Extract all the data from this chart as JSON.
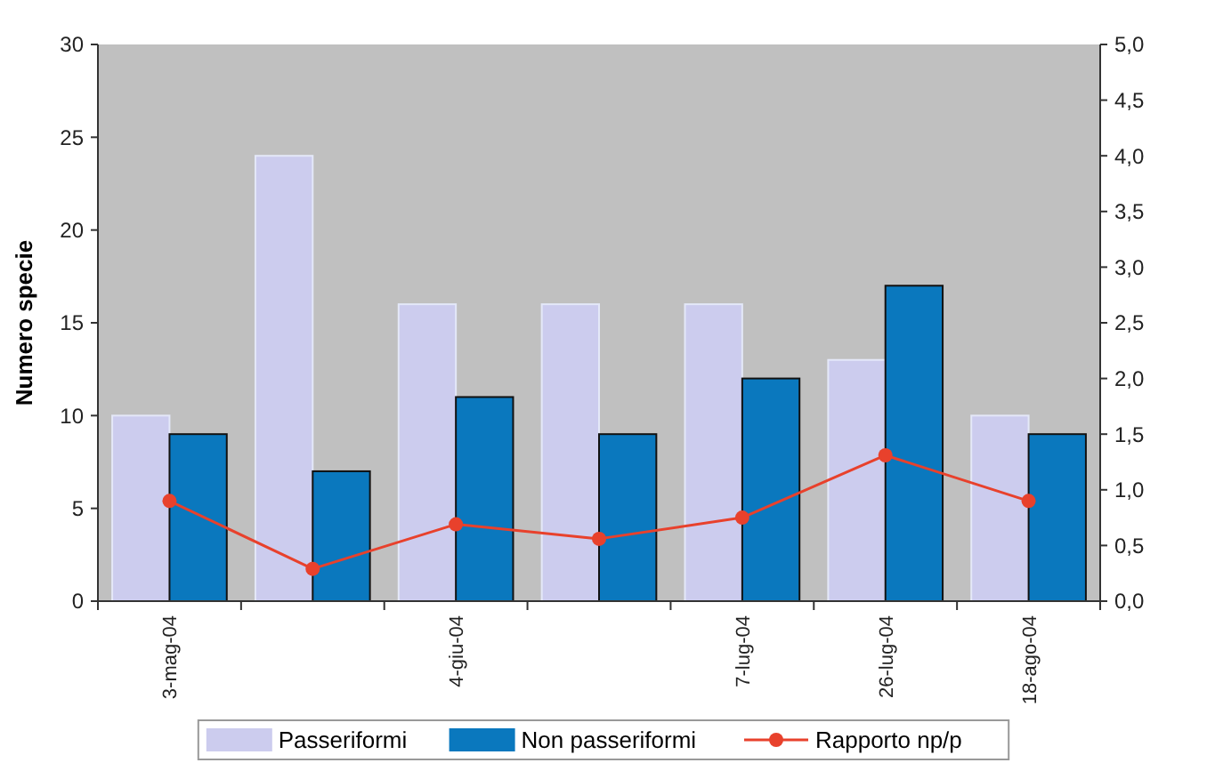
{
  "chart_data": {
    "type": "bar",
    "ylabel": "Numero specie",
    "categories": [
      "3-mag-04",
      null,
      "4-giu-04",
      null,
      "7-lug-04",
      "26-lug-04",
      "18-ago-04"
    ],
    "series": [
      {
        "name": "Passeriformi",
        "color": "#ccccee",
        "values": [
          10,
          24,
          16,
          16,
          16,
          13,
          10
        ]
      },
      {
        "name": "Non passeriformi",
        "color": "#0a78be",
        "values": [
          9,
          7,
          11,
          9,
          12,
          17,
          9
        ]
      },
      {
        "name": "Rapporto np/p",
        "type": "line",
        "axis": "y2",
        "color": "#e8412c",
        "marker": "circle",
        "values": [
          0.9,
          0.29,
          0.69,
          0.56,
          0.75,
          1.31,
          0.9
        ]
      }
    ],
    "ylim": [
      0,
      30
    ],
    "yticks": [
      0,
      5,
      10,
      15,
      20,
      25,
      30
    ],
    "y2lim": [
      0,
      5
    ],
    "y2ticks": [
      {
        "value": 0,
        "label": "0,0"
      },
      {
        "value": 0.5,
        "label": "0,5"
      },
      {
        "value": 1,
        "label": "1,0"
      },
      {
        "value": 1.5,
        "label": "1,5"
      },
      {
        "value": 2,
        "label": "2,0"
      },
      {
        "value": 2.5,
        "label": "2,5"
      },
      {
        "value": 3,
        "label": "3,0"
      },
      {
        "value": 3.5,
        "label": "3,5"
      },
      {
        "value": 4,
        "label": "4,0"
      },
      {
        "value": 4.5,
        "label": "4,5"
      },
      {
        "value": 5,
        "label": "5,0"
      }
    ],
    "grid": false,
    "legend": "bottom"
  }
}
